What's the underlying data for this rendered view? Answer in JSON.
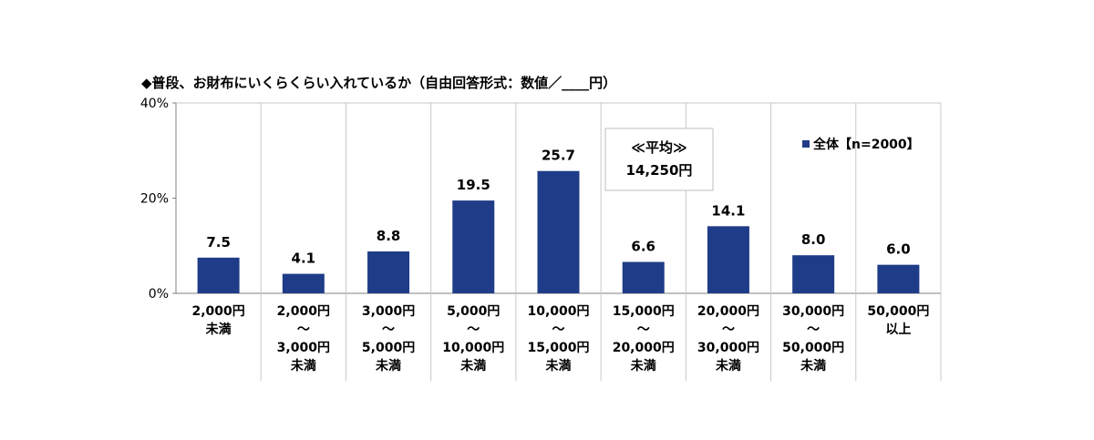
{
  "chart_data": {
    "type": "bar",
    "title": "◆普段、お財布にいくらくらい入れているか（自由回答形式：数値／____円）",
    "yticks": [
      "0%",
      "20%",
      "40%"
    ],
    "ylim": [
      0,
      40
    ],
    "categories": [
      [
        "2,000円",
        "未満"
      ],
      [
        "2,000円",
        "～",
        "3,000円",
        "未満"
      ],
      [
        "3,000円",
        "～",
        "5,000円",
        "未満"
      ],
      [
        "5,000円",
        "～",
        "10,000円",
        "未満"
      ],
      [
        "10,000円",
        "～",
        "15,000円",
        "未満"
      ],
      [
        "15,000円",
        "～",
        "20,000円",
        "未満"
      ],
      [
        "20,000円",
        "～",
        "30,000円",
        "未満"
      ],
      [
        "30,000円",
        "～",
        "50,000円",
        "未満"
      ],
      [
        "50,000円",
        "以上"
      ]
    ],
    "series": [
      {
        "name": "全体【n=2000】",
        "values": [
          7.5,
          4.1,
          8.8,
          19.5,
          25.7,
          6.6,
          14.1,
          8.0,
          6.0
        ],
        "color": "#1f3c88"
      }
    ],
    "value_labels": [
      "7.5",
      "4.1",
      "8.8",
      "19.5",
      "25.7",
      "6.6",
      "14.1",
      "8.0",
      "6.0"
    ],
    "annotation": {
      "line1": "≪平均≫",
      "line2": "14,250円"
    },
    "grid": "vertical category separators",
    "legend": "top-right"
  }
}
